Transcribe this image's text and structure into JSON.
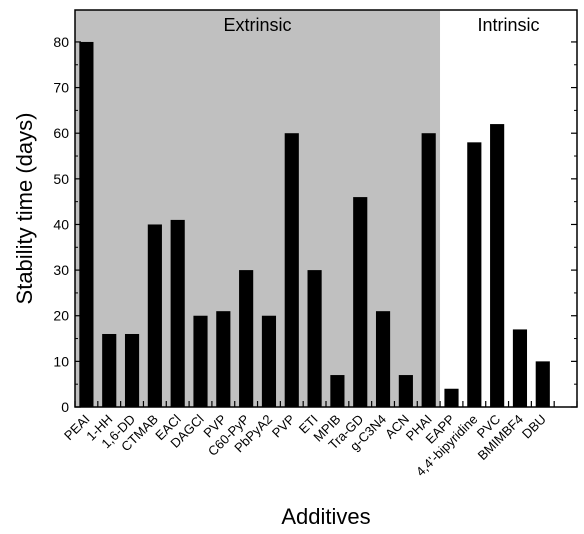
{
  "chart_data": {
    "type": "bar",
    "xlabel": "Additives",
    "ylabel": "Stability time (days)",
    "ylim": [
      0,
      87
    ],
    "yticks": [
      0,
      10,
      20,
      30,
      40,
      50,
      60,
      70,
      80
    ],
    "categories": [
      "PEAI",
      "1-HH",
      "1,6-DD",
      "CTMAB",
      "EACl",
      "DAGCl",
      "PVP",
      "C60-PyP",
      "PbPyA2",
      "PVP",
      "ETI",
      "MPIB",
      "Tra-GD",
      "g-C3N4",
      "ACN",
      "PHAI",
      "EAPP",
      "4,4'-bipyridine",
      "PVC",
      "BMIMBF4",
      "DBU"
    ],
    "values": [
      80,
      16,
      16,
      40,
      41,
      20,
      21,
      30,
      20,
      60,
      30,
      7,
      46,
      21,
      7,
      60,
      4,
      58,
      62,
      17,
      10
    ],
    "regions": [
      {
        "label": "Extrinsic",
        "start_index": 0,
        "end_index": 15,
        "fill": "#c0c0c0"
      },
      {
        "label": "Intrinsic",
        "start_index": 16,
        "end_index": 20,
        "fill": "#ffffff"
      }
    ],
    "bar_color": "#000000",
    "grid": false
  }
}
